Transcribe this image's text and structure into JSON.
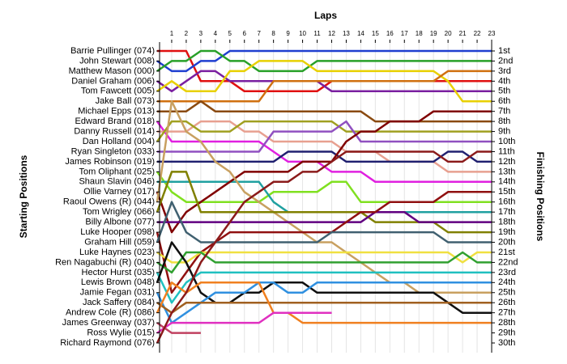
{
  "chart_data": {
    "type": "bump",
    "title": "Laps",
    "ylabel": "Starting Positions",
    "y2label": "Finishing Positions",
    "categories": [
      null,
      1,
      2,
      3,
      4,
      5,
      6,
      7,
      8,
      9,
      10,
      11,
      12,
      13,
      14,
      15,
      16,
      17,
      18,
      19,
      20,
      21,
      22,
      23
    ],
    "ylim": [
      1,
      30
    ],
    "y_reversed": true,
    "y2lim": [
      1,
      30
    ],
    "yticks": [
      {
        "value": 1,
        "label": "Barrie Pullinger (074)"
      },
      {
        "value": 2,
        "label": "John Stewart (008)"
      },
      {
        "value": 3,
        "label": "Matthew Mason (000)"
      },
      {
        "value": 4,
        "label": "Daniel Graham (006)"
      },
      {
        "value": 5,
        "label": "Tom Fawcett (005)"
      },
      {
        "value": 6,
        "label": "Jake Ball (073)"
      },
      {
        "value": 7,
        "label": "Michael Epps (013)"
      },
      {
        "value": 8,
        "label": "Edward Brand (018)"
      },
      {
        "value": 9,
        "label": "Danny Russell (014)"
      },
      {
        "value": 10,
        "label": "Dan Holland (004)"
      },
      {
        "value": 11,
        "label": "Ryan Singleton (033)"
      },
      {
        "value": 12,
        "label": "James Robinson (019)"
      },
      {
        "value": 13,
        "label": "Tom Oliphant (025)"
      },
      {
        "value": 14,
        "label": "Shaun Slavin (046)"
      },
      {
        "value": 15,
        "label": "Ollie Varney (017)"
      },
      {
        "value": 16,
        "label": "Raoul Owens  (R) (044)"
      },
      {
        "value": 17,
        "label": "Tom Wrigley (066)"
      },
      {
        "value": 18,
        "label": "Billy Albone (077)"
      },
      {
        "value": 19,
        "label": "Luke Hooper (098)"
      },
      {
        "value": 20,
        "label": "Graham Hill (059)"
      },
      {
        "value": 21,
        "label": "Luke Haynes (023)"
      },
      {
        "value": 22,
        "label": "Ren Nagabuchi  (R) (040)"
      },
      {
        "value": 23,
        "label": "Hector Hurst (035)"
      },
      {
        "value": 24,
        "label": "Lewis Brown (048)"
      },
      {
        "value": 25,
        "label": "Jamie Fegan (031)"
      },
      {
        "value": 26,
        "label": "Jack Saffery (084)"
      },
      {
        "value": 27,
        "label": "Andrew Cole  (R) (086)"
      },
      {
        "value": 28,
        "label": "James Greenway (037)"
      },
      {
        "value": 29,
        "label": "Ross Wylie (015)"
      },
      {
        "value": 30,
        "label": "Richard Raymond (076)"
      }
    ],
    "y2ticks": [
      {
        "value": 1,
        "label": "1st"
      },
      {
        "value": 2,
        "label": "2nd"
      },
      {
        "value": 3,
        "label": "3rd"
      },
      {
        "value": 4,
        "label": "4th"
      },
      {
        "value": 5,
        "label": "5th"
      },
      {
        "value": 6,
        "label": "6th"
      },
      {
        "value": 7,
        "label": "7th"
      },
      {
        "value": 8,
        "label": "8th"
      },
      {
        "value": 9,
        "label": "9th"
      },
      {
        "value": 10,
        "label": "10th"
      },
      {
        "value": 11,
        "label": "11th"
      },
      {
        "value": 12,
        "label": "12th"
      },
      {
        "value": 13,
        "label": "13th"
      },
      {
        "value": 14,
        "label": "14th"
      },
      {
        "value": 15,
        "label": "15th"
      },
      {
        "value": 16,
        "label": "16th"
      },
      {
        "value": 17,
        "label": "17th"
      },
      {
        "value": 18,
        "label": "18th"
      },
      {
        "value": 19,
        "label": "19th"
      },
      {
        "value": 20,
        "label": "20th"
      },
      {
        "value": 21,
        "label": "21st"
      },
      {
        "value": 22,
        "label": "22nd"
      },
      {
        "value": 23,
        "label": "23rd"
      },
      {
        "value": 24,
        "label": "24th"
      },
      {
        "value": 25,
        "label": "25th"
      },
      {
        "value": 26,
        "label": "26th"
      },
      {
        "value": 27,
        "label": "27th"
      },
      {
        "value": 28,
        "label": "28th"
      },
      {
        "value": 29,
        "label": "29th"
      },
      {
        "value": 30,
        "label": "30th"
      }
    ],
    "series": [
      {
        "color": "#e01010",
        "values": [
          1,
          1,
          1,
          4,
          4,
          4,
          5,
          5,
          5,
          5,
          5,
          5,
          4,
          4,
          4,
          4,
          4,
          4,
          4,
          4,
          4,
          4,
          4,
          4
        ]
      },
      {
        "color": "#1f3fd0",
        "values": [
          2,
          3,
          3,
          2,
          2,
          1,
          1,
          1,
          1,
          1,
          1,
          1,
          1,
          1,
          1,
          1,
          1,
          1,
          1,
          1,
          1,
          1,
          1,
          1
        ]
      },
      {
        "color": "#28a028",
        "values": [
          3,
          2,
          2,
          1,
          1,
          2,
          2,
          3,
          3,
          3,
          3,
          2,
          2,
          2,
          2,
          2,
          2,
          2,
          2,
          2,
          2,
          2,
          2,
          2
        ]
      },
      {
        "color": "#7a1fa0",
        "values": [
          4,
          5,
          4,
          3,
          3,
          4,
          4,
          4,
          4,
          4,
          4,
          4,
          5,
          5,
          5,
          5,
          5,
          5,
          5,
          5,
          5,
          5,
          5,
          5
        ]
      },
      {
        "color": "#e8d000",
        "values": [
          5,
          4,
          5,
          5,
          5,
          3,
          3,
          2,
          2,
          2,
          2,
          3,
          3,
          3,
          3,
          3,
          3,
          3,
          3,
          3,
          4,
          6,
          6,
          6
        ]
      },
      {
        "color": "#d07010",
        "values": [
          6,
          6,
          6,
          6,
          6,
          6,
          6,
          6,
          4,
          4,
          4,
          4,
          4,
          4,
          4,
          4,
          4,
          4,
          4,
          4,
          3,
          3,
          3,
          3
        ]
      },
      {
        "color": "#8a4a10",
        "values": [
          7,
          7,
          7,
          6,
          7,
          7,
          7,
          7,
          7,
          7,
          7,
          7,
          7,
          7,
          7,
          8,
          8,
          8,
          8,
          8,
          8,
          8,
          8,
          8
        ]
      },
      {
        "color": "#e020e0",
        "values": [
          8,
          10,
          10,
          10,
          10,
          10,
          10,
          10,
          11,
          12,
          12,
          12,
          13,
          13,
          13,
          14,
          14,
          14,
          14,
          14,
          14,
          14,
          14,
          14
        ]
      },
      {
        "color": "#e8a090",
        "values": [
          9,
          9,
          9,
          8,
          8,
          8,
          9,
          9,
          10,
          10,
          10,
          10,
          10,
          11,
          11,
          11,
          12,
          12,
          12,
          12,
          13,
          13,
          13,
          13
        ]
      },
      {
        "color": "#a0a020",
        "values": [
          10,
          8,
          8,
          9,
          9,
          9,
          8,
          8,
          8,
          8,
          8,
          8,
          8,
          9,
          9,
          9,
          9,
          9,
          9,
          9,
          9,
          9,
          9,
          9
        ]
      },
      {
        "color": "#9050c0",
        "values": [
          11,
          11,
          11,
          11,
          11,
          11,
          11,
          11,
          9,
          9,
          9,
          9,
          9,
          8,
          10,
          10,
          10,
          10,
          10,
          10,
          10,
          10,
          10,
          10
        ]
      },
      {
        "color": "#202070",
        "values": [
          12,
          12,
          12,
          12,
          12,
          12,
          12,
          12,
          12,
          11,
          11,
          11,
          11,
          12,
          12,
          12,
          12,
          12,
          12,
          12,
          11,
          11,
          12,
          12
        ]
      },
      {
        "color": "#80e020",
        "values": [
          13,
          15,
          16,
          16,
          16,
          16,
          16,
          16,
          15,
          15,
          15,
          15,
          14,
          14,
          16,
          16,
          16,
          16,
          16,
          16,
          16,
          16,
          16,
          16
        ]
      },
      {
        "color": "#20a0a0",
        "values": [
          14,
          14,
          14,
          14,
          14,
          14,
          14,
          14,
          16,
          17,
          17,
          17,
          17,
          17,
          17,
          17,
          17,
          17,
          17,
          17,
          17,
          17,
          17,
          17
        ]
      },
      {
        "color": "#800000",
        "values": [
          15,
          19,
          17,
          16,
          15,
          14,
          13,
          13,
          13,
          13,
          12,
          12,
          12,
          10,
          9,
          9,
          8,
          8,
          8,
          7,
          7,
          7,
          7,
          7
        ]
      },
      {
        "color": "#c8a060",
        "values": [
          16,
          6,
          9,
          10,
          12,
          13,
          15,
          16,
          17,
          18,
          19,
          20,
          20,
          21,
          22,
          23,
          24,
          24,
          25,
          25,
          25,
          25,
          25,
          25
        ]
      },
      {
        "color": "#808000",
        "values": [
          17,
          13,
          13,
          17,
          17,
          17,
          17,
          17,
          17,
          17,
          17,
          17,
          17,
          17,
          17,
          18,
          18,
          18,
          18,
          18,
          19,
          19,
          19,
          19
        ]
      },
      {
        "color": "#600080",
        "values": [
          18,
          18,
          18,
          18,
          18,
          18,
          18,
          18,
          18,
          18,
          18,
          18,
          18,
          18,
          18,
          17,
          17,
          17,
          18,
          18,
          18,
          18,
          18,
          18
        ]
      },
      {
        "color": "#901010",
        "values": [
          19,
          25,
          23,
          21,
          20,
          19,
          19,
          19,
          19,
          19,
          19,
          19,
          19,
          18,
          17,
          17,
          16,
          16,
          16,
          16,
          15,
          15,
          15,
          15
        ]
      },
      {
        "color": "#406070",
        "values": [
          20,
          16,
          19,
          20,
          20,
          20,
          20,
          20,
          20,
          20,
          20,
          20,
          19,
          19,
          19,
          19,
          19,
          19,
          19,
          19,
          20,
          20,
          20,
          20
        ]
      },
      {
        "color": "#f0e040",
        "values": [
          21,
          22,
          22,
          21,
          21,
          21,
          21,
          21,
          21,
          21,
          21,
          21,
          21,
          21,
          21,
          21,
          21,
          21,
          21,
          21,
          21,
          22,
          21,
          21
        ]
      },
      {
        "color": "#30a030",
        "values": [
          22,
          23,
          21,
          21,
          22,
          22,
          22,
          22,
          22,
          22,
          22,
          22,
          22,
          22,
          22,
          22,
          22,
          22,
          22,
          22,
          22,
          21,
          22,
          22
        ]
      },
      {
        "color": "#20c0c0",
        "values": [
          23,
          26,
          24,
          23,
          23,
          23,
          23,
          23,
          23,
          23,
          23,
          23,
          23,
          23,
          23,
          23,
          23,
          23,
          23,
          23,
          23,
          23,
          23,
          23
        ]
      },
      {
        "color": "#101010",
        "values": [
          24,
          20,
          22,
          25,
          26,
          26,
          25,
          25,
          24,
          24,
          24,
          25,
          25,
          25,
          25,
          25,
          25,
          25,
          25,
          25,
          26,
          27,
          27,
          27
        ]
      },
      {
        "color": "#3090e0",
        "values": [
          25,
          28,
          27,
          26,
          25,
          25,
          25,
          24,
          24,
          25,
          25,
          24,
          24,
          24,
          24,
          24,
          24,
          24,
          24,
          24,
          24,
          24,
          24,
          24
        ]
      },
      {
        "color": "#a06020",
        "values": [
          26,
          27,
          26,
          26,
          26,
          26,
          26,
          26,
          26,
          26,
          26,
          26,
          26,
          26,
          26,
          26,
          26,
          26,
          26,
          26,
          26,
          26,
          26,
          26
        ]
      },
      {
        "color": "#f08020",
        "values": [
          27,
          24,
          25,
          24,
          24,
          24,
          24,
          24,
          27,
          27,
          28,
          28,
          28,
          28,
          28,
          28,
          28,
          28,
          28,
          28,
          28,
          28,
          28,
          28
        ]
      },
      {
        "color": "#c04060",
        "values": [
          28,
          29,
          29,
          29,
          null,
          null,
          null,
          null,
          null,
          null,
          null,
          null,
          null,
          null,
          null,
          null,
          null,
          null,
          null,
          null,
          null,
          null,
          null,
          null
        ]
      },
      {
        "color": "#e030c0",
        "values": [
          29,
          28,
          28,
          28,
          28,
          28,
          28,
          28,
          27,
          27,
          27,
          27,
          27,
          null,
          null,
          null,
          null,
          null,
          null,
          null,
          null,
          null,
          null,
          null
        ]
      },
      {
        "color": "#8b1a1a",
        "values": [
          30,
          27,
          25,
          22,
          20,
          18,
          16,
          15,
          14,
          14,
          13,
          13,
          12,
          11,
          11,
          11,
          11,
          11,
          11,
          11,
          12,
          12,
          11,
          11
        ]
      }
    ]
  }
}
